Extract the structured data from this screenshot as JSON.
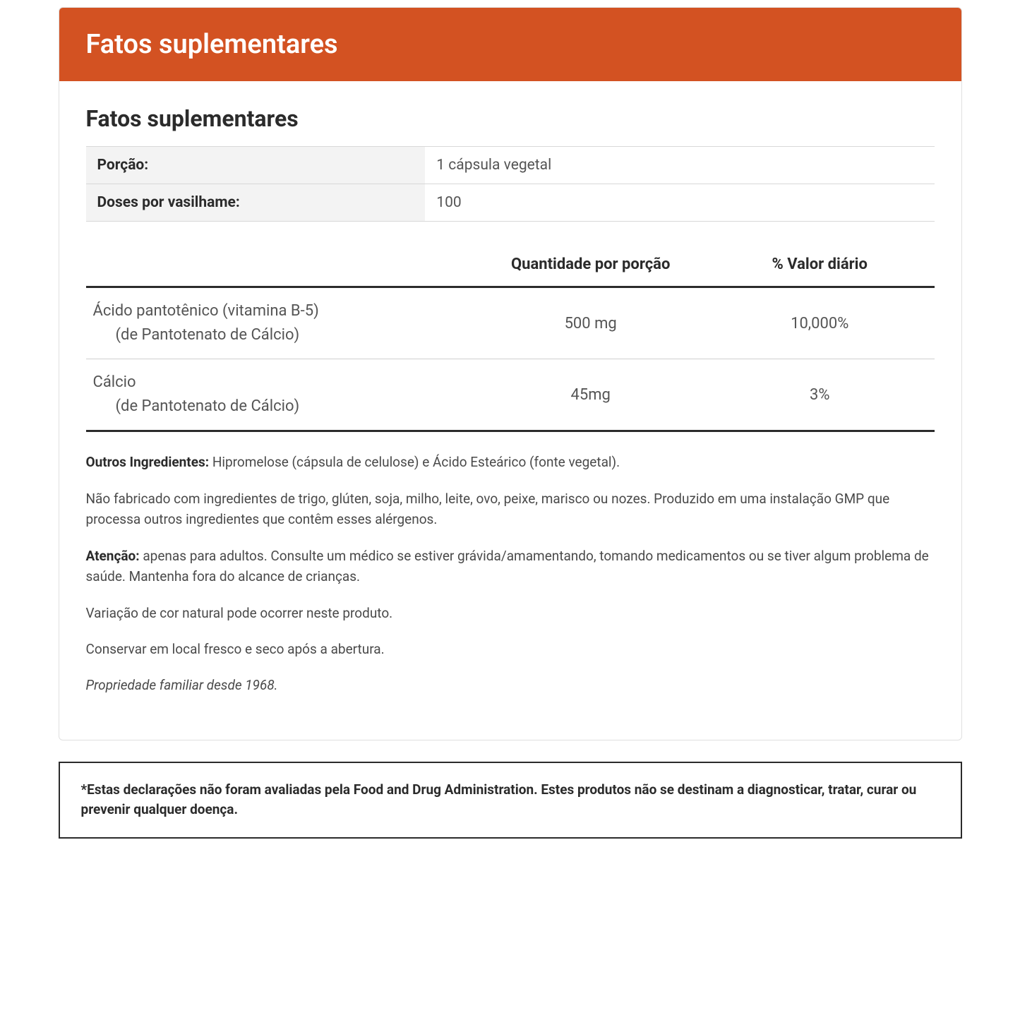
{
  "header": {
    "title": "Fatos suplementares"
  },
  "section_title": "Fatos suplementares",
  "info_rows": [
    {
      "label": "Porção:",
      "value": "1 cápsula vegetal"
    },
    {
      "label": "Doses por vasilhame:",
      "value": "100"
    }
  ],
  "nutrient_headers": {
    "col1": "",
    "col2": "Quantidade por porção",
    "col3": "% Valor diário"
  },
  "nutrients": [
    {
      "name": "Ácido pantotênico (vitamina B-5)",
      "sub": "(de Pantotenato de Cálcio)",
      "amount": "500 mg",
      "dv": "10,000%"
    },
    {
      "name": "Cálcio",
      "sub": "(de Pantotenato de Cálcio)",
      "amount": "45mg",
      "dv": "3%"
    }
  ],
  "notes": {
    "other_ing_label": "Outros Ingredientes: ",
    "other_ing_text": "Hipromelose (cápsula de celulose) e Ácido Esteárico (fonte vegetal).",
    "allergen": "Não fabricado com ingredientes de trigo, glúten, soja, milho, leite, ovo, peixe, marisco ou nozes. Produzido em uma instalação GMP que processa outros ingredientes que contêm esses alérgenos.",
    "warning_label": "Atenção: ",
    "warning_text": "apenas para adultos. Consulte um médico se estiver grávida/amamentando, tomando medicamentos ou se tiver algum problema de saúde. Mantenha fora do alcance de crianças.",
    "color_var": "Variação de cor natural pode ocorrer neste produto.",
    "storage": "Conservar em local fresco e seco após a abertura.",
    "heritage": "Propriedade familiar desde 1968."
  },
  "disclaimer": "*Estas declarações não foram avaliadas pela Food and Drug Administration. Estes produtos não se destinam a diagnosticar, tratar, curar ou prevenir qualquer doença.",
  "colors": {
    "header_bg": "#d35222",
    "header_text": "#ffffff",
    "border": "#e0e0e0",
    "row_alt_bg": "#f3f3f3",
    "text_primary": "#2b2b2b",
    "text_secondary": "#555555",
    "rule_heavy": "#2b2b2b",
    "rule_light": "#cfcfcf"
  }
}
